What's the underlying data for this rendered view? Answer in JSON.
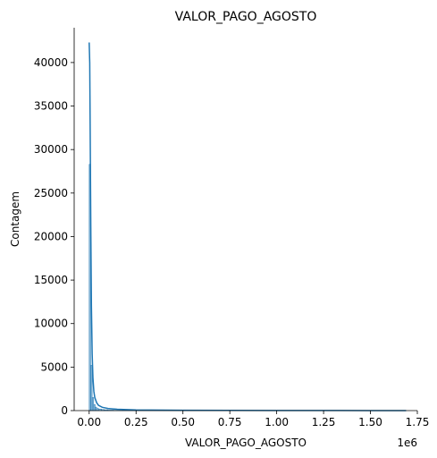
{
  "chart_data": {
    "type": "histogram",
    "title": "VALOR_PAGO_AGOSTO",
    "xlabel": "VALOR_PAGO_AGOSTO",
    "ylabel": "Contagem",
    "x_offset_label": "1e6",
    "xlim": [
      -0.08,
      1.75
    ],
    "ylim": [
      0,
      44000
    ],
    "x_ticks": [
      0.0,
      0.25,
      0.5,
      0.75,
      1.0,
      1.25,
      1.5,
      1.75
    ],
    "x_tick_labels": [
      "0.00",
      "0.25",
      "0.50",
      "0.75",
      "1.00",
      "1.25",
      "1.50",
      "1.75"
    ],
    "y_ticks": [
      0,
      5000,
      10000,
      15000,
      20000,
      25000,
      30000,
      35000,
      40000
    ],
    "y_tick_labels": [
      "0",
      "5000",
      "10000",
      "15000",
      "20000",
      "25000",
      "30000",
      "35000",
      "40000"
    ],
    "grid": false,
    "bars": {
      "bin_edges": [
        0.0,
        0.008,
        0.016,
        0.024,
        0.032,
        0.04,
        0.05,
        0.065,
        0.08,
        0.1,
        0.13,
        0.18,
        0.25,
        0.4,
        0.6,
        0.8,
        1.0,
        1.2,
        1.4,
        1.6,
        1.69
      ],
      "counts": [
        28300,
        5200,
        1500,
        700,
        400,
        250,
        180,
        120,
        90,
        60,
        40,
        25,
        15,
        8,
        5,
        4,
        3,
        2,
        2,
        1
      ],
      "color": "#1f77b4",
      "fill_opacity": 0.5
    },
    "kde": {
      "color": "#1f77b4",
      "x": [
        0.0,
        0.003,
        0.006,
        0.009,
        0.012,
        0.016,
        0.02,
        0.025,
        0.03,
        0.04,
        0.05,
        0.07,
        0.1,
        0.15,
        0.25,
        0.5,
        0.75,
        1.0,
        1.25,
        1.5,
        1.69
      ],
      "y": [
        42300,
        40000,
        30000,
        20000,
        12000,
        6500,
        3800,
        2200,
        1500,
        900,
        600,
        380,
        250,
        150,
        80,
        40,
        25,
        15,
        10,
        6,
        3
      ]
    }
  }
}
